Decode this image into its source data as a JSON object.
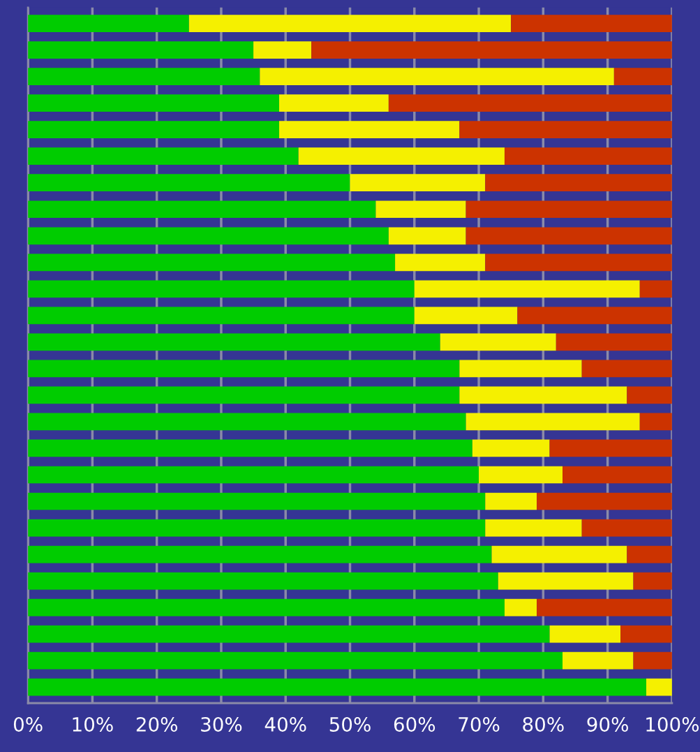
{
  "chart_data": {
    "type": "bar",
    "orientation": "horizontal",
    "stacked": true,
    "categories": [
      null,
      null,
      null,
      null,
      null,
      null,
      null,
      null,
      null,
      null,
      null,
      null,
      null,
      null,
      null,
      null,
      null,
      null,
      null,
      null,
      null,
      null,
      null,
      null,
      null,
      null
    ],
    "series": [
      {
        "color": "#00cc00",
        "values": [
          25,
          35,
          36,
          39,
          39,
          42,
          50,
          54,
          56,
          57,
          60,
          60,
          64,
          67,
          67,
          68,
          69,
          70,
          71,
          71,
          72,
          73,
          74,
          81,
          83,
          96
        ]
      },
      {
        "color": "#f5f000",
        "values": [
          50,
          9,
          55,
          17,
          28,
          32,
          21,
          14,
          12,
          14,
          35,
          16,
          18,
          19,
          26,
          27,
          12,
          13,
          8,
          15,
          21,
          21,
          5,
          11,
          11,
          4
        ]
      },
      {
        "color": "#cc3300",
        "values": [
          25,
          56,
          9,
          44,
          33,
          26,
          29,
          32,
          32,
          29,
          5,
          24,
          18,
          14,
          7,
          5,
          19,
          17,
          21,
          14,
          7,
          6,
          21,
          8,
          6,
          0
        ]
      }
    ],
    "xlim": [
      0,
      100
    ],
    "xticks": [
      {
        "value": 0,
        "label": "0%"
      },
      {
        "value": 10,
        "label": "10%"
      },
      {
        "value": 20,
        "label": "20%"
      },
      {
        "value": 30,
        "label": "30%"
      },
      {
        "value": 40,
        "label": "40%"
      },
      {
        "value": 50,
        "label": "50%"
      },
      {
        "value": 60,
        "label": "60%"
      },
      {
        "value": 70,
        "label": "70%"
      },
      {
        "value": 80,
        "label": "80%"
      },
      {
        "value": 90,
        "label": "90%"
      },
      {
        "value": 100,
        "label": "100%"
      }
    ],
    "grid": "x",
    "tick_labels": "x"
  }
}
